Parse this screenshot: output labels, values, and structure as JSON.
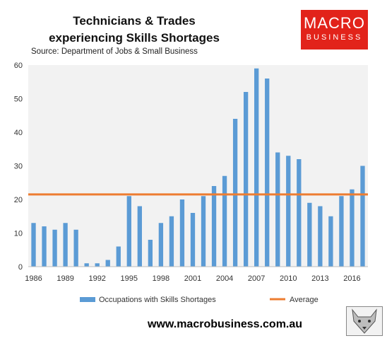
{
  "title_line1": "Technicians & Trades",
  "title_line2": "experiencing Skills Shortages",
  "source": "Source: Department of Jobs & Small Business",
  "logo": {
    "line1": "MACRO",
    "line2": "BUSINESS"
  },
  "url": "www.macrobusiness.com.au",
  "colors": {
    "bar": "#5b9bd5",
    "average": "#ed7d31",
    "plot_bg": "#f2f2f2",
    "logo_bg": "#e2231a"
  },
  "chart_data": {
    "type": "bar",
    "title": "Technicians & Trades experiencing Skills Shortages",
    "x": [
      1986,
      1987,
      1988,
      1989,
      1990,
      1991,
      1992,
      1993,
      1994,
      1995,
      1996,
      1997,
      1998,
      1999,
      2000,
      2001,
      2002,
      2003,
      2004,
      2005,
      2006,
      2007,
      2008,
      2009,
      2010,
      2011,
      2012,
      2013,
      2014,
      2015,
      2016,
      2017
    ],
    "x_tick_labels": [
      "1986",
      "1989",
      "1992",
      "1995",
      "1998",
      "2001",
      "2004",
      "2007",
      "2010",
      "2013",
      "2016"
    ],
    "series": [
      {
        "name": "Occupations with Skills Shortages",
        "type": "bar",
        "values": [
          13,
          12,
          11,
          13,
          11,
          1,
          1,
          2,
          6,
          21,
          18,
          8,
          13,
          15,
          20,
          16,
          21,
          24,
          27,
          44,
          52,
          59,
          56,
          34,
          33,
          32,
          19,
          18,
          15,
          21,
          23,
          30
        ]
      },
      {
        "name": "Average",
        "type": "line",
        "value": 21.5
      }
    ],
    "ylim": [
      0,
      60
    ],
    "y_ticks": [
      0,
      10,
      20,
      30,
      40,
      50,
      60
    ],
    "grid": false,
    "legend": "bottom"
  }
}
